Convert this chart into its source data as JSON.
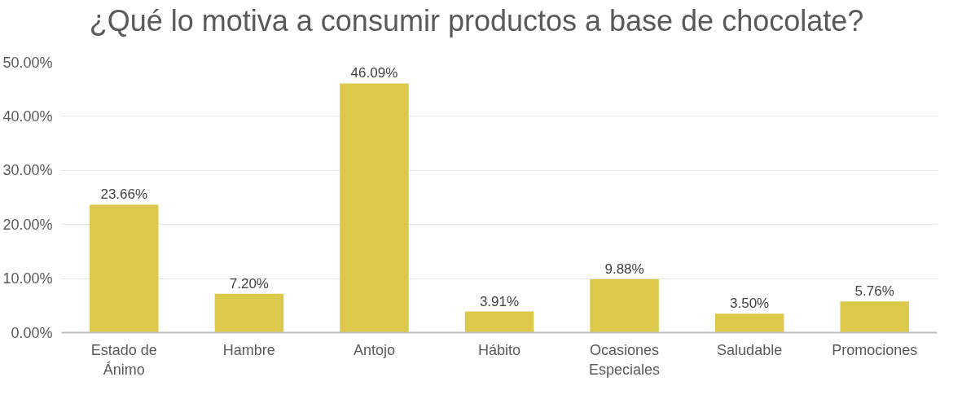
{
  "chart_data": {
    "type": "bar",
    "title": "¿Qué lo motiva a consumir productos a base de chocolate?",
    "categories": [
      "Estado de Ánimo",
      "Hambre",
      "Antojo",
      "Hábito",
      "Ocasiones Especiales",
      "Saludable",
      "Promociones"
    ],
    "values": [
      23.66,
      7.2,
      46.09,
      3.91,
      9.88,
      3.5,
      5.76
    ],
    "value_labels": [
      "23.66%",
      "7.20%",
      "46.09%",
      "3.91%",
      "9.88%",
      "3.50%",
      "5.76%"
    ],
    "color": "#dcc84a",
    "ylim": [
      0,
      50
    ],
    "yticks": [
      {
        "value": 0,
        "label": "0.00%"
      },
      {
        "value": 10,
        "label": "10.00%"
      },
      {
        "value": 20,
        "label": "20.00%"
      },
      {
        "value": 30,
        "label": "30.00%"
      },
      {
        "value": 40,
        "label": "40.00%"
      },
      {
        "value": 50,
        "label": "50.00%"
      }
    ],
    "grid": "y"
  }
}
